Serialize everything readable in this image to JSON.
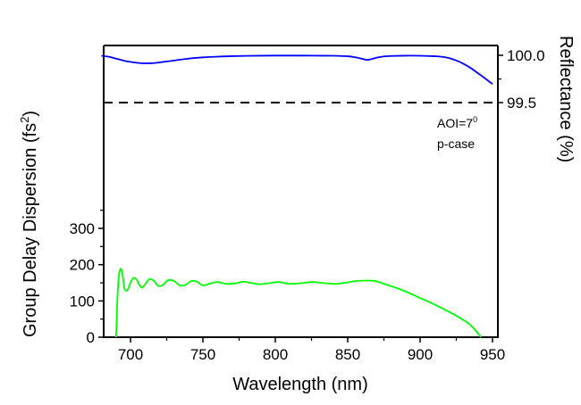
{
  "chart_data": {
    "type": "line",
    "title": "",
    "xlabel": "Wavelength (nm)",
    "xlim": [
      680,
      955
    ],
    "xticks": [
      700,
      750,
      800,
      850,
      900,
      950
    ],
    "xtick_labels": [
      "700",
      "750",
      "800",
      "850",
      "900",
      "950"
    ],
    "left_axis": {
      "label": "Group Delay Dispersion (fs",
      "label_superscript": "2",
      "label_suffix": ")",
      "ylim": [
        0,
        330
      ],
      "ticks": [
        0,
        100,
        200,
        300
      ],
      "tick_labels": [
        "0",
        "100",
        "200",
        "300"
      ]
    },
    "right_axis": {
      "label": "Reflectance (%)",
      "ylim": [
        98.98,
        100.105
      ],
      "ticks": [
        99.5,
        100.0
      ],
      "tick_labels": [
        "99.5",
        "100.0"
      ]
    },
    "reference_line": {
      "axis": "right",
      "value": 99.5,
      "style": "dashed",
      "color": "#000000"
    },
    "annotations": [
      {
        "text": "AOI=7",
        "superscript": "0"
      },
      {
        "text": "p-case"
      }
    ],
    "series": [
      {
        "name": "Reflectance",
        "axis": "right",
        "color": "#0000ff",
        "x": [
          680,
          685,
          690,
          695,
          700,
          705,
          710,
          715,
          720,
          730,
          740,
          750,
          760,
          770,
          780,
          790,
          800,
          810,
          820,
          830,
          840,
          850,
          855,
          860,
          863,
          866,
          870,
          875,
          880,
          890,
          900,
          910,
          915,
          920,
          925,
          930,
          935,
          940,
          945,
          950
        ],
        "values": [
          99.995,
          99.985,
          99.965,
          99.945,
          99.93,
          99.92,
          99.915,
          99.917,
          99.925,
          99.945,
          99.965,
          99.978,
          99.986,
          99.991,
          99.994,
          99.996,
          99.997,
          99.997,
          99.997,
          99.996,
          99.995,
          99.99,
          99.98,
          99.963,
          99.952,
          99.958,
          99.975,
          99.988,
          99.993,
          99.996,
          99.995,
          99.99,
          99.985,
          99.97,
          99.945,
          99.91,
          99.865,
          99.81,
          99.755,
          99.695
        ]
      },
      {
        "name": "Group Delay Dispersion",
        "axis": "left",
        "color": "#00ff00",
        "x": [
          690,
          690.5,
          691,
          692,
          693,
          694,
          695,
          696,
          698,
          700,
          702,
          704,
          706,
          708,
          710,
          713,
          716,
          719,
          722,
          726,
          730,
          734,
          738,
          742,
          746,
          750,
          755,
          760,
          766,
          772,
          778,
          784,
          790,
          796,
          802,
          810,
          818,
          826,
          834,
          842,
          850,
          856,
          862,
          866,
          870,
          876,
          882,
          890,
          900,
          910,
          920,
          928,
          934,
          938,
          940,
          942
        ],
        "values": [
          0,
          50,
          110,
          170,
          188,
          182,
          158,
          132,
          130,
          150,
          163,
          160,
          145,
          137,
          145,
          160,
          156,
          142,
          143,
          157,
          155,
          143,
          144,
          155,
          153,
          143,
          148,
          152,
          147,
          148,
          153,
          149,
          146,
          149,
          152,
          147,
          149,
          152,
          149,
          147,
          151,
          155,
          156,
          156,
          154,
          146,
          138,
          126,
          108,
          90,
          70,
          52,
          36,
          20,
          10,
          0
        ]
      }
    ]
  }
}
